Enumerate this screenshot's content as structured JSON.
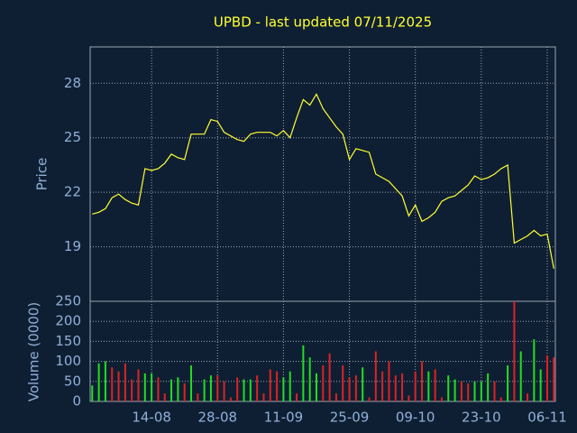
{
  "chart_data": [
    {
      "type": "line",
      "title": "UPBD - last updated 07/11/2025",
      "ylabel": "Price",
      "values": [
        20.8,
        20.9,
        21.1,
        21.7,
        21.9,
        21.6,
        21.4,
        21.3,
        23.3,
        23.2,
        23.3,
        23.6,
        24.1,
        23.9,
        23.8,
        25.2,
        25.2,
        25.2,
        26.0,
        25.9,
        25.3,
        25.1,
        24.9,
        24.8,
        25.2,
        25.3,
        25.3,
        25.3,
        25.1,
        25.4,
        25.0,
        26.1,
        27.1,
        26.8,
        27.4,
        26.6,
        26.1,
        25.6,
        25.2,
        23.8,
        24.4,
        24.3,
        24.2,
        23.0,
        22.8,
        22.6,
        22.2,
        21.8,
        20.7,
        21.3,
        20.4,
        20.6,
        20.9,
        21.5,
        21.7,
        21.8,
        22.1,
        22.4,
        22.9,
        22.7,
        22.8,
        23.0,
        23.3,
        23.5,
        19.2,
        19.4,
        19.6,
        19.9,
        19.6,
        19.7,
        17.8
      ],
      "color": "#ffff33",
      "ylim": [
        16,
        30
      ],
      "yticks": [
        19,
        22,
        25,
        28
      ],
      "grid": true
    },
    {
      "type": "bar",
      "ylabel": "Volume (0000)",
      "categories": [
        null,
        null,
        null,
        null,
        null,
        null,
        null,
        null,
        null,
        "14-08",
        null,
        null,
        null,
        null,
        null,
        null,
        null,
        null,
        null,
        "28-08",
        null,
        null,
        null,
        null,
        null,
        null,
        null,
        null,
        null,
        "11-09",
        null,
        null,
        null,
        null,
        null,
        null,
        null,
        null,
        null,
        "25-09",
        null,
        null,
        null,
        null,
        null,
        null,
        null,
        null,
        null,
        "09-10",
        null,
        null,
        null,
        null,
        null,
        null,
        null,
        null,
        null,
        "23-10",
        null,
        null,
        null,
        null,
        null,
        null,
        null,
        null,
        null,
        "06-11",
        null
      ],
      "values": [
        40,
        95,
        100,
        85,
        75,
        95,
        55,
        80,
        70,
        70,
        60,
        20,
        55,
        60,
        45,
        90,
        20,
        55,
        65,
        65,
        50,
        10,
        60,
        55,
        55,
        65,
        20,
        80,
        75,
        60,
        75,
        20,
        140,
        110,
        70,
        90,
        120,
        20,
        90,
        60,
        65,
        85,
        10,
        125,
        75,
        100,
        65,
        70,
        15,
        75,
        100,
        75,
        80,
        10,
        65,
        55,
        50,
        45,
        50,
        50,
        70,
        50,
        10,
        90,
        250,
        125,
        20,
        155,
        80,
        115,
        110
      ],
      "colors": [
        "#22dd22",
        "#22dd22",
        "#22dd22",
        "#dd2222",
        "#dd2222",
        "#dd2222",
        "#dd2222",
        "#dd2222",
        "#22dd22",
        "#22dd22",
        "#dd2222",
        "#dd2222",
        "#22dd22",
        "#22dd22",
        "#dd2222",
        "#22dd22",
        "#dd2222",
        "#22dd22",
        "#22dd22",
        "#dd2222",
        "#dd2222",
        "#dd2222",
        "#dd2222",
        "#22dd22",
        "#22dd22",
        "#dd2222",
        "#dd2222",
        "#dd2222",
        "#dd2222",
        "#22dd22",
        "#22dd22",
        "#dd2222",
        "#22dd22",
        "#22dd22",
        "#22dd22",
        "#dd2222",
        "#dd2222",
        "#dd2222",
        "#dd2222",
        "#dd2222",
        "#dd2222",
        "#22dd22",
        "#dd2222",
        "#dd2222",
        "#dd2222",
        "#dd2222",
        "#dd2222",
        "#dd2222",
        "#dd2222",
        "#dd2222",
        "#dd2222",
        "#22dd22",
        "#dd2222",
        "#dd2222",
        "#22dd22",
        "#22dd22",
        "#dd2222",
        "#dd2222",
        "#22dd22",
        "#22dd22",
        "#22dd22",
        "#dd2222",
        "#dd2222",
        "#22dd22",
        "#dd2222",
        "#22dd22",
        "#dd2222",
        "#22dd22",
        "#22dd22",
        "#dd2222",
        "#dd2222"
      ],
      "ylim": [
        0,
        250
      ],
      "yticks": [
        0,
        50,
        100,
        150,
        200,
        250
      ],
      "grid": true
    }
  ]
}
